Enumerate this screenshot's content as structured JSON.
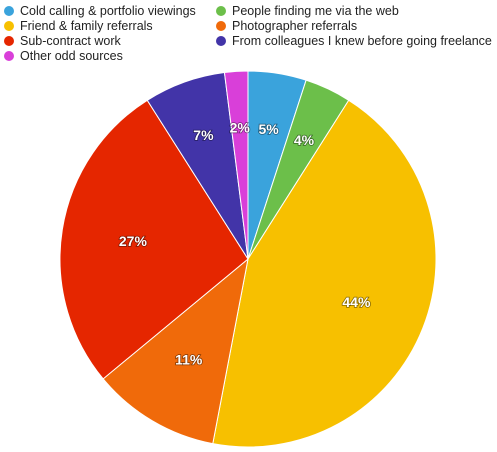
{
  "chart_data": {
    "type": "pie",
    "title": "",
    "legend_position": "top",
    "slices": [
      {
        "label": "Cold calling & portfolio viewings",
        "value": 5,
        "display": "5%",
        "color": "#3aa3dc"
      },
      {
        "label": "People finding me via the web",
        "value": 4,
        "display": "4%",
        "color": "#6cbf4a"
      },
      {
        "label": "Friend & family referrals",
        "value": 44,
        "display": "44%",
        "color": "#f7c000"
      },
      {
        "label": "Photographer referrals",
        "value": 11,
        "display": "11%",
        "color": "#f06a0a"
      },
      {
        "label": "Sub-contract work",
        "value": 27,
        "display": "27%",
        "color": "#e52600"
      },
      {
        "label": "From colleagues I knew before going freelance",
        "value": 7,
        "display": "7%",
        "color": "#4234a8"
      },
      {
        "label": "Other odd sources",
        "value": 2,
        "display": "2%",
        "color": "#d93fd9"
      }
    ],
    "legend_order": [
      0,
      1,
      2,
      3,
      4,
      5,
      6
    ]
  }
}
